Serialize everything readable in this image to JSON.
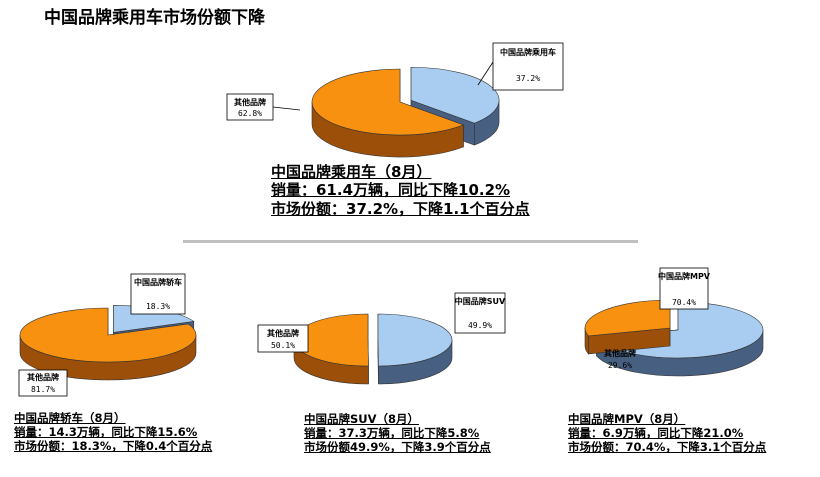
{
  "title": "中国品牌乘用车市场份额下降",
  "colors": {
    "china": "#a9cdf1",
    "china_side": "#475f80",
    "others": "#f7910f",
    "others_side": "#9b4f08"
  },
  "main": {
    "lines": [
      "中国品牌乘用车（8月）",
      "销量：61.4万辆，同比下降10.2%",
      "市场份额：37.2%，下降1.1个百分点"
    ]
  },
  "sedan": {
    "lines": [
      "中国品牌轿车（8月）",
      "销量：14.3万辆，同比下降15.6%",
      "市场份额：18.3%，下降0.4个百分点"
    ]
  },
  "suv": {
    "lines": [
      "中国品牌SUV（8月）",
      "销量：37.3万辆，同比下降5.8%",
      "市场份额49.9%，下降3.9个百分点"
    ]
  },
  "mpv": {
    "lines": [
      "中国品牌MPV（8月）",
      "销量：6.9万辆，同比下降21.0%",
      "市场份额：70.4%，下降3.1个百分点"
    ]
  },
  "chart_data": [
    {
      "type": "pie",
      "title": "中国品牌乘用车",
      "slices": [
        {
          "label": "中国品牌乘用车",
          "value": 37.2,
          "value_label": "37.2%"
        },
        {
          "label": "其他品牌",
          "value": 62.8,
          "value_label": "62.8%"
        }
      ]
    },
    {
      "type": "pie",
      "title": "中国品牌轿车",
      "slices": [
        {
          "label": "中国品牌轿车",
          "value": 18.3,
          "value_label": "18.3%"
        },
        {
          "label": "其他品牌",
          "value": 81.7,
          "value_label": "81.7%"
        }
      ]
    },
    {
      "type": "pie",
      "title": "中国品牌SUV",
      "slices": [
        {
          "label": "中国品牌SUV",
          "value": 49.9,
          "value_label": "49.9%"
        },
        {
          "label": "其他品牌",
          "value": 50.1,
          "value_label": "50.1%"
        }
      ]
    },
    {
      "type": "pie",
      "title": "中国品牌MPV",
      "slices": [
        {
          "label": "中国品牌MPV",
          "value": 70.4,
          "value_label": "70.4%"
        },
        {
          "label": "其他品牌",
          "value": 29.6,
          "value_label": "29.6%"
        }
      ]
    }
  ]
}
